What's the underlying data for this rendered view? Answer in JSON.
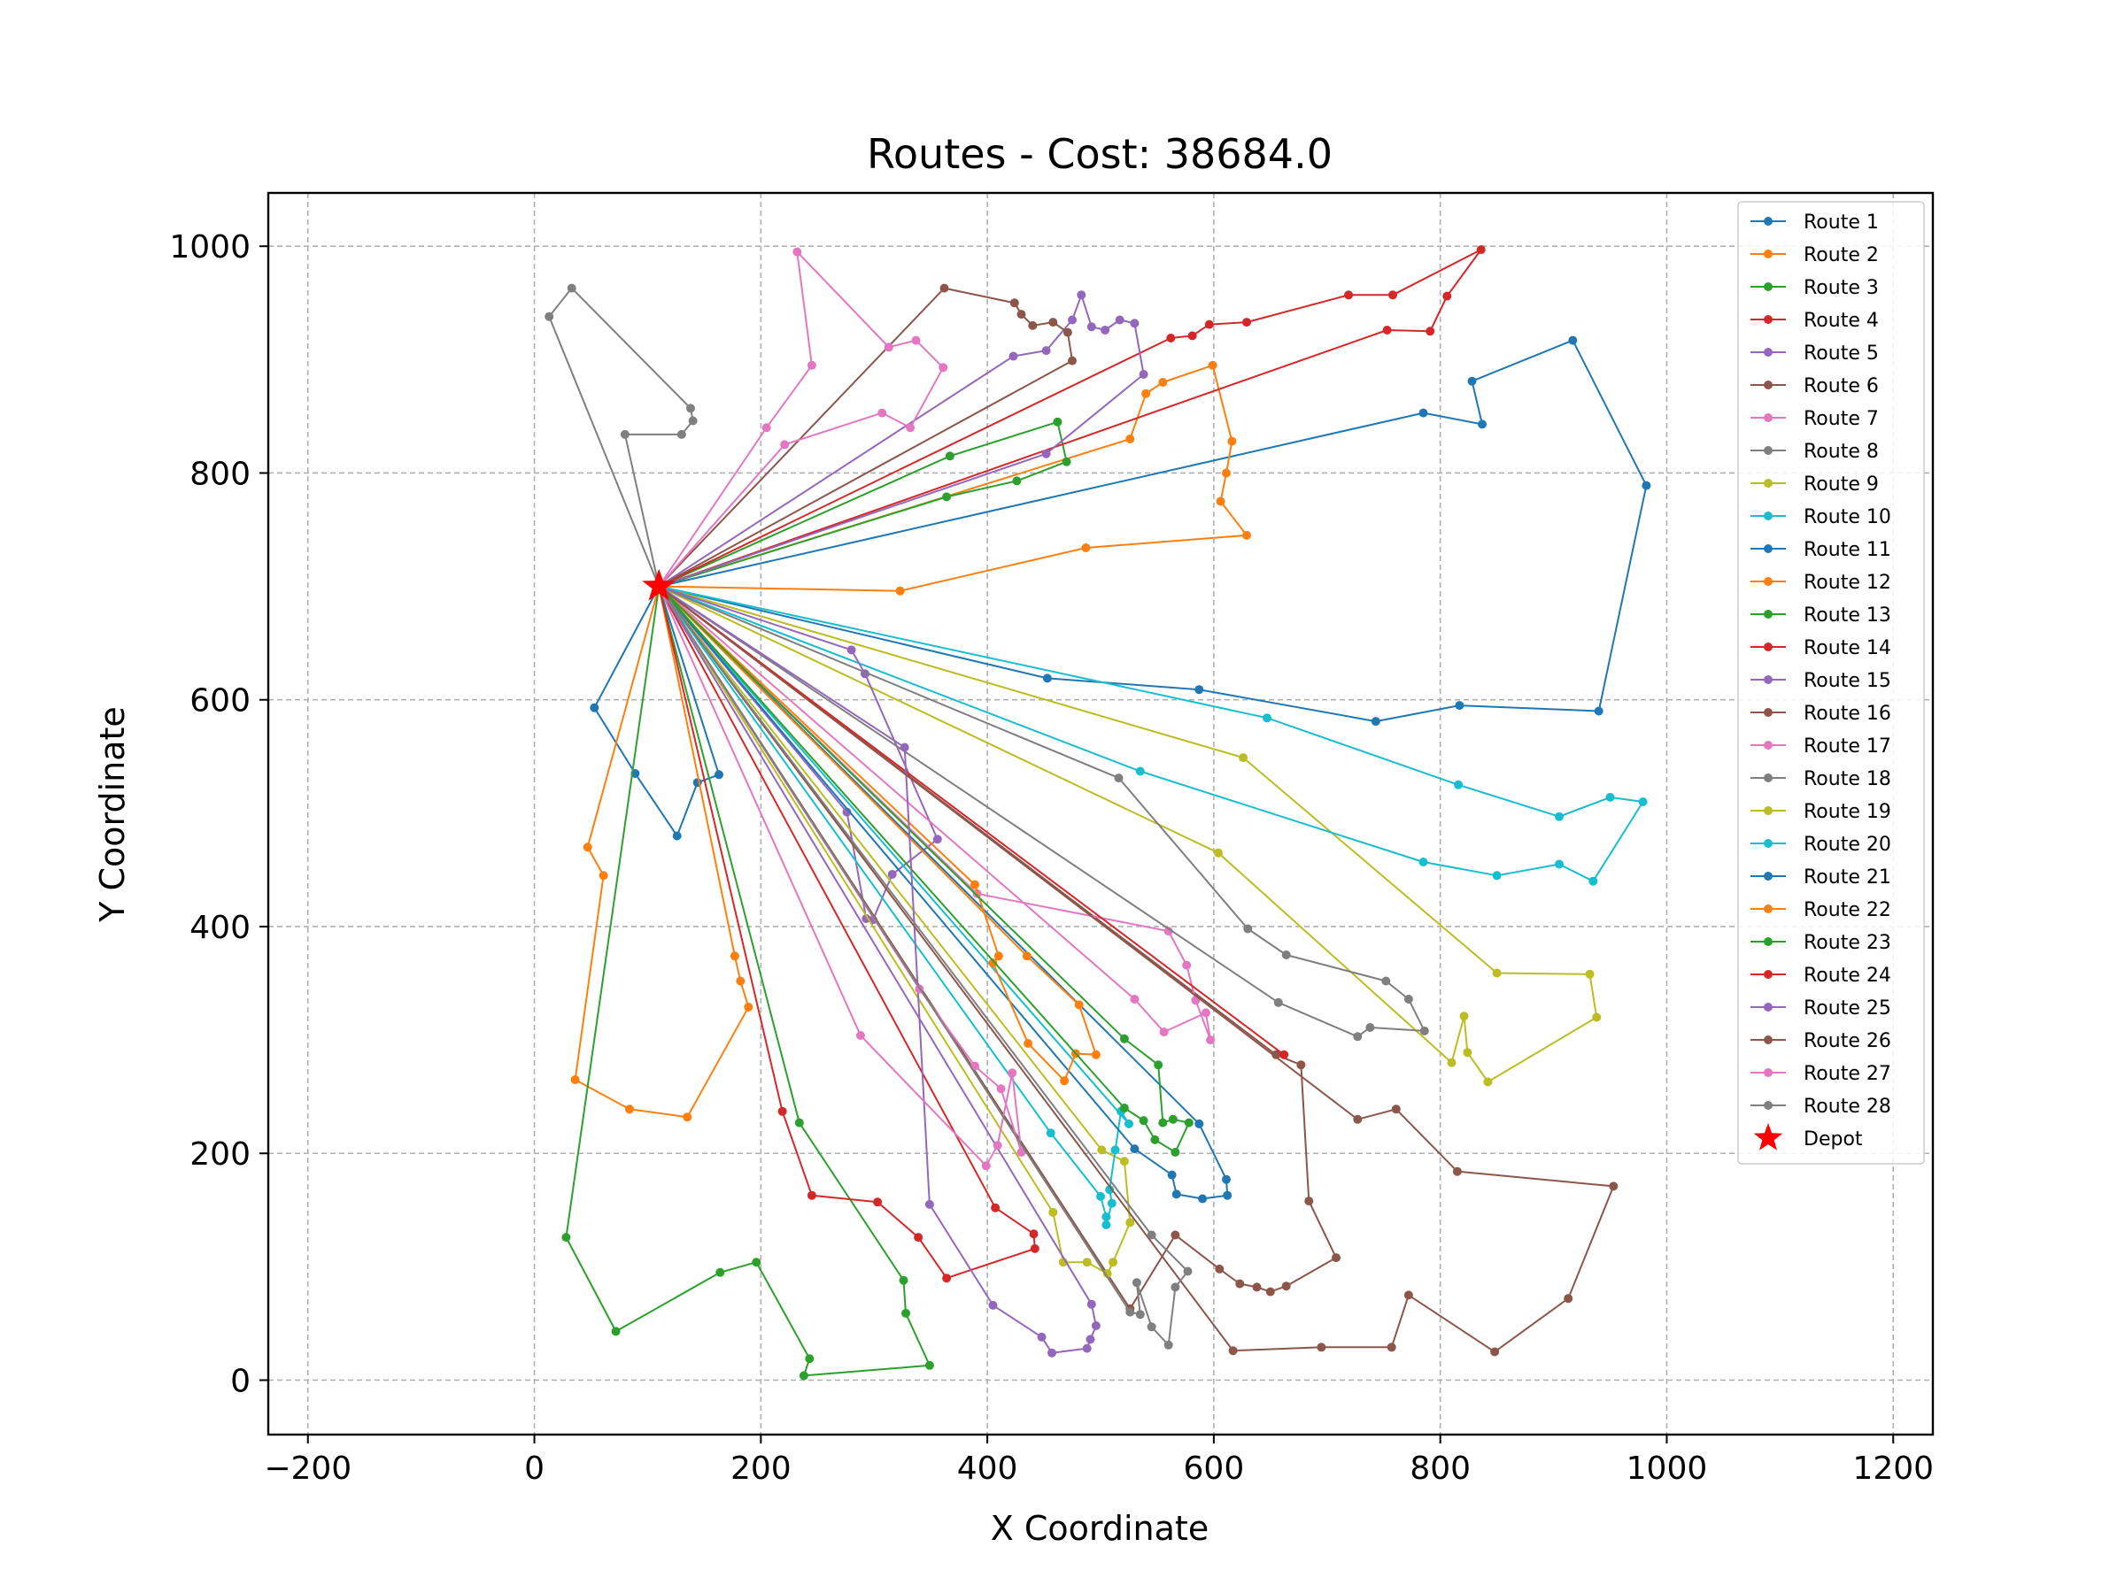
{
  "chart_data": {
    "type": "line",
    "title": "Routes - Cost: 38684.0",
    "xlabel": "X Coordinate",
    "ylabel": "Y Coordinate",
    "xlim": [
      -235,
      1235
    ],
    "ylim": [
      -48,
      1047
    ],
    "xticks": [
      -200,
      0,
      200,
      400,
      600,
      800,
      1000,
      1200
    ],
    "yticks": [
      0,
      200,
      400,
      600,
      800,
      1000
    ],
    "grid": true,
    "legend_position": "top-right",
    "depot": {
      "name": "Depot",
      "x": 110,
      "y": 700,
      "color": "#ff0000"
    },
    "series": [
      {
        "name": "Route 1",
        "color": "#1f77b4",
        "points": [
          [
            110,
            700
          ],
          [
            785,
            853
          ],
          [
            837,
            843
          ],
          [
            828,
            881
          ],
          [
            917,
            917
          ],
          [
            982,
            789
          ],
          [
            940,
            590
          ],
          [
            817,
            595
          ],
          [
            743,
            581
          ],
          [
            587,
            609
          ],
          [
            453,
            619
          ],
          [
            110,
            700
          ]
        ]
      },
      {
        "name": "Route 2",
        "color": "#ff7f0e",
        "points": [
          [
            110,
            700
          ],
          [
            323,
            696
          ],
          [
            487,
            734
          ],
          [
            629,
            745
          ],
          [
            606,
            775
          ],
          [
            611,
            800
          ],
          [
            616,
            828
          ],
          [
            599,
            895
          ],
          [
            555,
            880
          ],
          [
            540,
            870
          ],
          [
            526,
            830
          ],
          [
            110,
            700
          ]
        ]
      },
      {
        "name": "Route 3",
        "color": "#2ca02c",
        "points": [
          [
            110,
            700
          ],
          [
            367,
            815
          ],
          [
            462,
            845
          ],
          [
            470,
            810
          ],
          [
            426,
            793
          ],
          [
            364,
            779
          ],
          [
            110,
            700
          ]
        ]
      },
      {
        "name": "Route 4",
        "color": "#d62728",
        "points": [
          [
            110,
            700
          ],
          [
            753,
            926
          ],
          [
            791,
            925
          ],
          [
            806,
            956
          ],
          [
            836,
            997
          ],
          [
            758,
            957
          ],
          [
            719,
            957
          ],
          [
            629,
            933
          ],
          [
            596,
            931
          ],
          [
            581,
            921
          ],
          [
            562,
            919
          ],
          [
            110,
            700
          ]
        ]
      },
      {
        "name": "Route 5",
        "color": "#9467bd",
        "points": [
          [
            110,
            700
          ],
          [
            423,
            903
          ],
          [
            452,
            908
          ],
          [
            475,
            935
          ],
          [
            483,
            957
          ],
          [
            492,
            929
          ],
          [
            504,
            926
          ],
          [
            517,
            935
          ],
          [
            530,
            932
          ],
          [
            538,
            887
          ],
          [
            452,
            817
          ],
          [
            110,
            700
          ]
        ]
      },
      {
        "name": "Route 6",
        "color": "#8c564b",
        "points": [
          [
            110,
            700
          ],
          [
            362,
            963
          ],
          [
            424,
            950
          ],
          [
            430,
            940
          ],
          [
            440,
            930
          ],
          [
            458,
            933
          ],
          [
            471,
            924
          ],
          [
            475,
            899
          ],
          [
            110,
            700
          ]
        ]
      },
      {
        "name": "Route 7",
        "color": "#e377c2",
        "points": [
          [
            110,
            700
          ],
          [
            205,
            840
          ],
          [
            245,
            895
          ],
          [
            232,
            995
          ],
          [
            313,
            911
          ],
          [
            337,
            917
          ],
          [
            361,
            893
          ],
          [
            332,
            840
          ],
          [
            307,
            853
          ],
          [
            221,
            825
          ],
          [
            110,
            700
          ]
        ]
      },
      {
        "name": "Route 8",
        "color": "#7f7f7f",
        "points": [
          [
            110,
            700
          ],
          [
            13,
            938
          ],
          [
            33,
            963
          ],
          [
            138,
            857
          ],
          [
            140,
            846
          ],
          [
            130,
            834
          ],
          [
            80,
            834
          ],
          [
            110,
            700
          ]
        ]
      },
      {
        "name": "Route 9",
        "color": "#bcbd22",
        "points": [
          [
            110,
            700
          ],
          [
            626,
            549
          ],
          [
            850,
            359
          ],
          [
            932,
            358
          ],
          [
            938,
            320
          ],
          [
            842,
            263
          ],
          [
            824,
            289
          ],
          [
            821,
            321
          ],
          [
            810,
            280
          ],
          [
            604,
            465
          ],
          [
            110,
            700
          ]
        ]
      },
      {
        "name": "Route 10",
        "color": "#17becf",
        "points": [
          [
            110,
            700
          ],
          [
            647,
            584
          ],
          [
            816,
            525
          ],
          [
            905,
            497
          ],
          [
            950,
            514
          ],
          [
            979,
            510
          ],
          [
            935,
            440
          ],
          [
            905,
            455
          ],
          [
            850,
            445
          ],
          [
            785,
            457
          ],
          [
            535,
            537
          ],
          [
            110,
            700
          ]
        ]
      },
      {
        "name": "Route 11",
        "color": "#1f77b4",
        "points": [
          [
            110,
            700
          ],
          [
            53,
            593
          ],
          [
            89,
            535
          ],
          [
            126,
            480
          ],
          [
            144,
            527
          ],
          [
            163,
            534
          ],
          [
            110,
            700
          ]
        ]
      },
      {
        "name": "Route 12",
        "color": "#ff7f0e",
        "points": [
          [
            110,
            700
          ],
          [
            47,
            470
          ],
          [
            61,
            445
          ],
          [
            36,
            265
          ],
          [
            84,
            239
          ],
          [
            135,
            232
          ],
          [
            189,
            329
          ],
          [
            182,
            352
          ],
          [
            177,
            374
          ],
          [
            110,
            700
          ]
        ]
      },
      {
        "name": "Route 13",
        "color": "#2ca02c",
        "points": [
          [
            110,
            700
          ],
          [
            28,
            126
          ],
          [
            72,
            43
          ],
          [
            164,
            95
          ],
          [
            196,
            104
          ],
          [
            243,
            19
          ],
          [
            238,
            4
          ],
          [
            349,
            13
          ],
          [
            328,
            59
          ],
          [
            326,
            88
          ],
          [
            234,
            227
          ],
          [
            110,
            700
          ]
        ]
      },
      {
        "name": "Route 14",
        "color": "#d62728",
        "points": [
          [
            110,
            700
          ],
          [
            219,
            237
          ],
          [
            245,
            163
          ],
          [
            303,
            157
          ],
          [
            339,
            126
          ],
          [
            364,
            90
          ],
          [
            442,
            116
          ],
          [
            441,
            129
          ],
          [
            407,
            152
          ],
          [
            110,
            700
          ]
        ]
      },
      {
        "name": "Route 15",
        "color": "#9467bd",
        "points": [
          [
            110,
            700
          ],
          [
            276,
            501
          ],
          [
            293,
            407
          ],
          [
            299,
            406
          ],
          [
            316,
            446
          ],
          [
            356,
            477
          ],
          [
            292,
            623
          ],
          [
            280,
            644
          ],
          [
            110,
            700
          ]
        ]
      },
      {
        "name": "Route 16",
        "color": "#8c564b",
        "points": [
          [
            110,
            700
          ],
          [
            655,
            287
          ],
          [
            677,
            278
          ],
          [
            684,
            158
          ],
          [
            708,
            108
          ],
          [
            664,
            83
          ],
          [
            650,
            78
          ],
          [
            638,
            82
          ],
          [
            623,
            85
          ],
          [
            605,
            98
          ],
          [
            566,
            128
          ],
          [
            526,
            63
          ],
          [
            110,
            700
          ]
        ]
      },
      {
        "name": "Route 17",
        "color": "#e377c2",
        "points": [
          [
            110,
            700
          ],
          [
            391,
            429
          ],
          [
            560,
            396
          ],
          [
            576,
            366
          ],
          [
            584,
            335
          ],
          [
            597,
            300
          ],
          [
            593,
            324
          ],
          [
            556,
            307
          ],
          [
            530,
            336
          ],
          [
            110,
            700
          ]
        ]
      },
      {
        "name": "Route 18",
        "color": "#7f7f7f",
        "points": [
          [
            110,
            700
          ],
          [
            516,
            531
          ],
          [
            630,
            398
          ],
          [
            664,
            375
          ],
          [
            752,
            352
          ],
          [
            772,
            336
          ],
          [
            786,
            308
          ],
          [
            738,
            311
          ],
          [
            727,
            303
          ],
          [
            657,
            333
          ],
          [
            110,
            700
          ]
        ]
      },
      {
        "name": "Route 19",
        "color": "#bcbd22",
        "points": [
          [
            110,
            700
          ],
          [
            458,
            148
          ],
          [
            467,
            104
          ],
          [
            488,
            104
          ],
          [
            506,
            94
          ],
          [
            511,
            104
          ],
          [
            526,
            139
          ],
          [
            521,
            193
          ],
          [
            501,
            203
          ],
          [
            110,
            700
          ]
        ]
      },
      {
        "name": "Route 20",
        "color": "#17becf",
        "points": [
          [
            110,
            700
          ],
          [
            456,
            218
          ],
          [
            500,
            162
          ],
          [
            505,
            144
          ],
          [
            505,
            137
          ],
          [
            510,
            156
          ],
          [
            508,
            168
          ],
          [
            513,
            203
          ],
          [
            518,
            237
          ],
          [
            525,
            226
          ],
          [
            110,
            700
          ]
        ]
      },
      {
        "name": "Route 21",
        "color": "#1f77b4",
        "points": [
          [
            110,
            700
          ],
          [
            587,
            226
          ],
          [
            611,
            177
          ],
          [
            612,
            163
          ],
          [
            590,
            160
          ],
          [
            567,
            164
          ],
          [
            563,
            181
          ],
          [
            530,
            204
          ],
          [
            110,
            700
          ]
        ]
      },
      {
        "name": "Route 22",
        "color": "#ff7f0e",
        "points": [
          [
            110,
            700
          ],
          [
            389,
            437
          ],
          [
            410,
            374
          ],
          [
            405,
            368
          ],
          [
            436,
            297
          ],
          [
            468,
            264
          ],
          [
            478,
            288
          ],
          [
            496,
            287
          ],
          [
            481,
            331
          ],
          [
            435,
            374
          ],
          [
            110,
            700
          ]
        ]
      },
      {
        "name": "Route 23",
        "color": "#2ca02c",
        "points": [
          [
            110,
            700
          ],
          [
            521,
            301
          ],
          [
            551,
            278
          ],
          [
            555,
            227
          ],
          [
            564,
            230
          ],
          [
            578,
            227
          ],
          [
            566,
            201
          ],
          [
            548,
            212
          ],
          [
            538,
            229
          ],
          [
            521,
            240
          ],
          [
            110,
            700
          ]
        ]
      },
      {
        "name": "Route 24",
        "color": "#d62728",
        "points": [
          [
            110,
            700
          ],
          [
            662,
            287
          ],
          [
            110,
            700
          ]
        ]
      },
      {
        "name": "Route 25",
        "color": "#9467bd",
        "points": [
          [
            110,
            700
          ],
          [
            327,
            558
          ],
          [
            349,
            155
          ],
          [
            405,
            66
          ],
          [
            448,
            38
          ],
          [
            457,
            24
          ],
          [
            488,
            28
          ],
          [
            491,
            36
          ],
          [
            496,
            48
          ],
          [
            492,
            67
          ],
          [
            110,
            700
          ]
        ]
      },
      {
        "name": "Route 26",
        "color": "#8c564b",
        "points": [
          [
            110,
            700
          ],
          [
            617,
            26
          ],
          [
            695,
            29
          ],
          [
            757,
            29
          ],
          [
            772,
            75
          ],
          [
            848,
            25
          ],
          [
            913,
            72
          ],
          [
            953,
            171
          ],
          [
            815,
            184
          ],
          [
            761,
            239
          ],
          [
            727,
            230
          ],
          [
            110,
            700
          ]
        ]
      },
      {
        "name": "Route 27",
        "color": "#e377c2",
        "points": [
          [
            110,
            700
          ],
          [
            288,
            304
          ],
          [
            399,
            189
          ],
          [
            409,
            207
          ],
          [
            422,
            271
          ],
          [
            430,
            201
          ],
          [
            412,
            257
          ],
          [
            389,
            277
          ],
          [
            340,
            345
          ],
          [
            110,
            700
          ]
        ]
      },
      {
        "name": "Route 28",
        "color": "#7f7f7f",
        "points": [
          [
            110,
            700
          ],
          [
            526,
            60
          ],
          [
            535,
            58
          ],
          [
            532,
            86
          ],
          [
            545,
            47
          ],
          [
            560,
            31
          ],
          [
            566,
            82
          ],
          [
            577,
            96
          ],
          [
            545,
            128
          ],
          [
            110,
            700
          ]
        ]
      }
    ]
  }
}
